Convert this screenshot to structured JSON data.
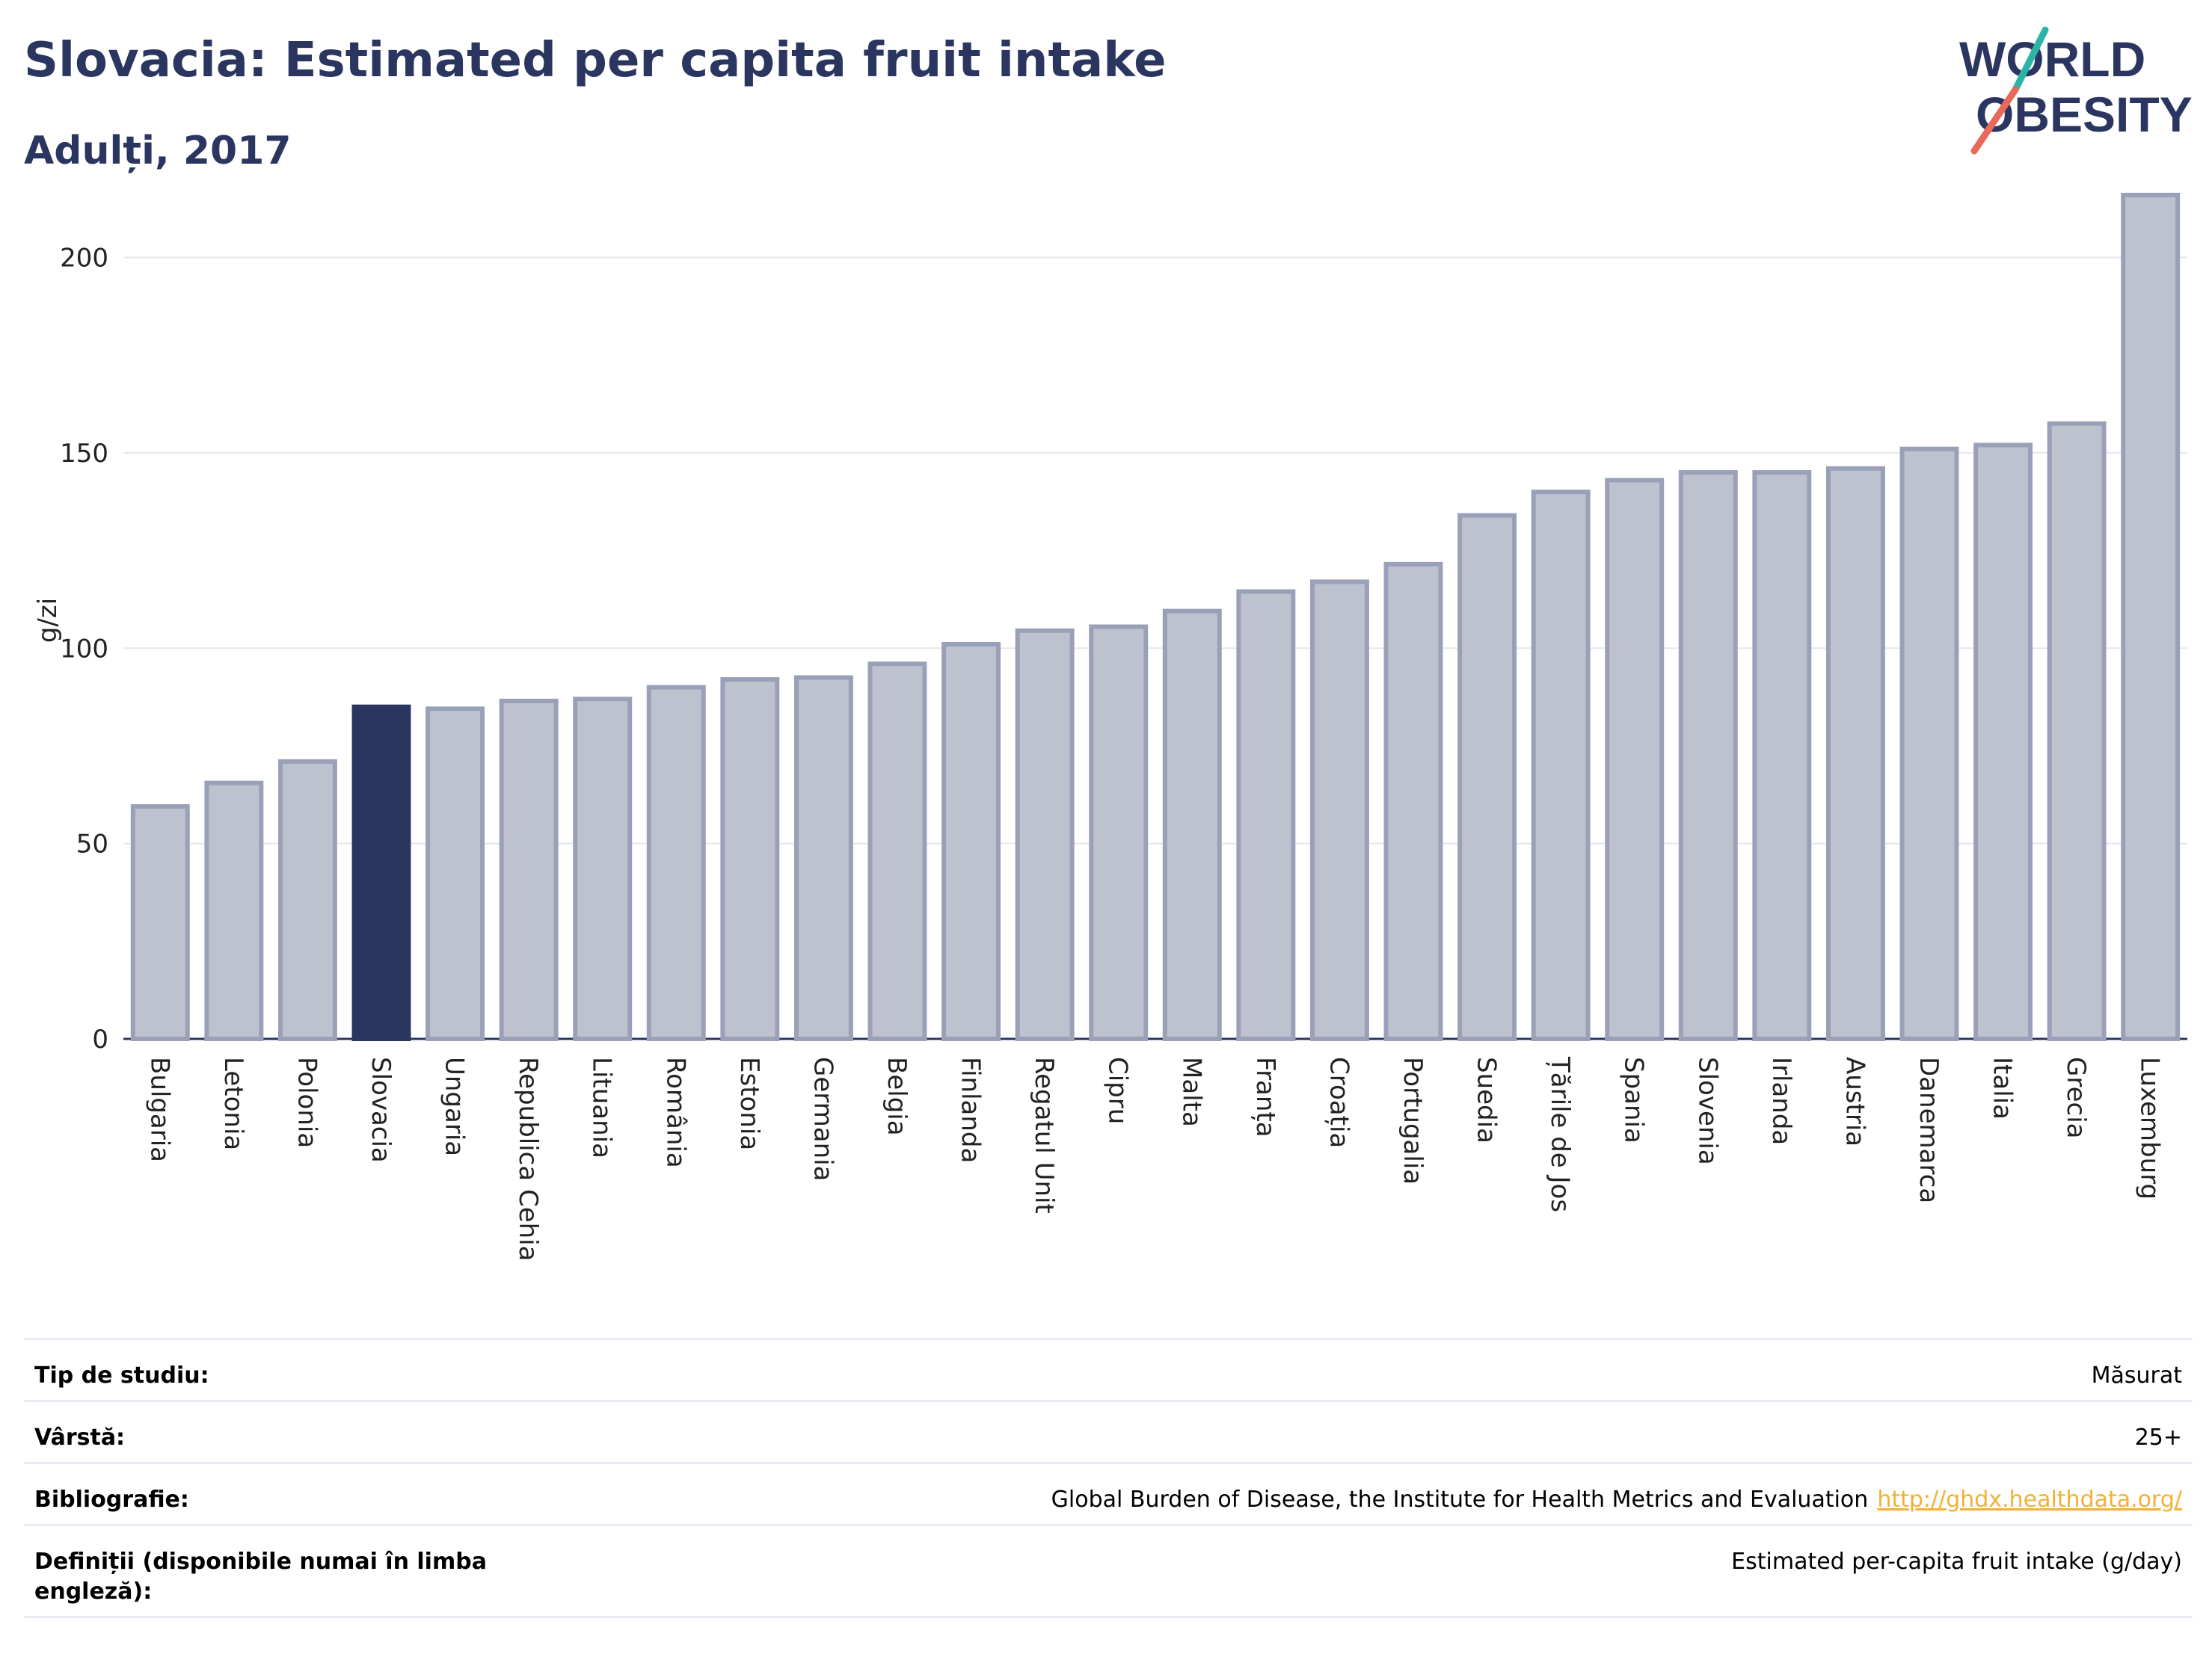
{
  "header": {
    "title": "Slovacia: Estimated per capita fruit intake",
    "subtitle": "Adulți, 2017"
  },
  "logo": {
    "line1": "WORLD",
    "line2": "OBESITY",
    "accent_colors": [
      "#2bb3a6",
      "#e8685a"
    ]
  },
  "colors": {
    "highlight": "#2b3660",
    "bar_fill": "#bec1ce",
    "bar_stroke": "#9aa0b8",
    "title": "#2b3660",
    "grid": "#e6e8ef",
    "link": "#f2b131"
  },
  "chart_data": {
    "type": "bar",
    "ylabel": "g/zi",
    "ylim": [
      0,
      220
    ],
    "yticks": [
      0,
      50,
      100,
      150,
      200
    ],
    "grid": true,
    "highlight": "Slovacia",
    "categories": [
      "Bulgaria",
      "Letonia",
      "Polonia",
      "Slovacia",
      "Ungaria",
      "Republica Cehia",
      "Lituania",
      "România",
      "Estonia",
      "Germania",
      "Belgia",
      "Finlanda",
      "Regatul Unit",
      "Cipru",
      "Malta",
      "Franța",
      "Croația",
      "Portugalia",
      "Suedia",
      "Țările de Jos",
      "Spania",
      "Slovenia",
      "Irlanda",
      "Austria",
      "Danemarca",
      "Italia",
      "Grecia",
      "Luxemburg"
    ],
    "values": [
      59.5,
      65.5,
      71,
      85,
      84.5,
      86.5,
      87,
      90,
      92,
      92.5,
      96,
      101,
      104.5,
      105.5,
      109.5,
      114.5,
      117,
      121.5,
      134,
      140,
      143,
      145,
      145,
      146,
      151,
      152,
      157.5,
      216
    ]
  },
  "info": {
    "rows": [
      {
        "label": "Tip de studiu:",
        "value": "Măsurat"
      },
      {
        "label": "Vârstă:",
        "value": "25+"
      },
      {
        "label": "Bibliografie:",
        "value": "Global Burden of Disease, the Institute for Health Metrics and Evaluation",
        "link": "http://ghdx.healthdata.org/"
      },
      {
        "label": "Definiții (disponibile numai în limba engleză):",
        "value": "Estimated per-capita fruit intake (g/day)"
      }
    ]
  }
}
